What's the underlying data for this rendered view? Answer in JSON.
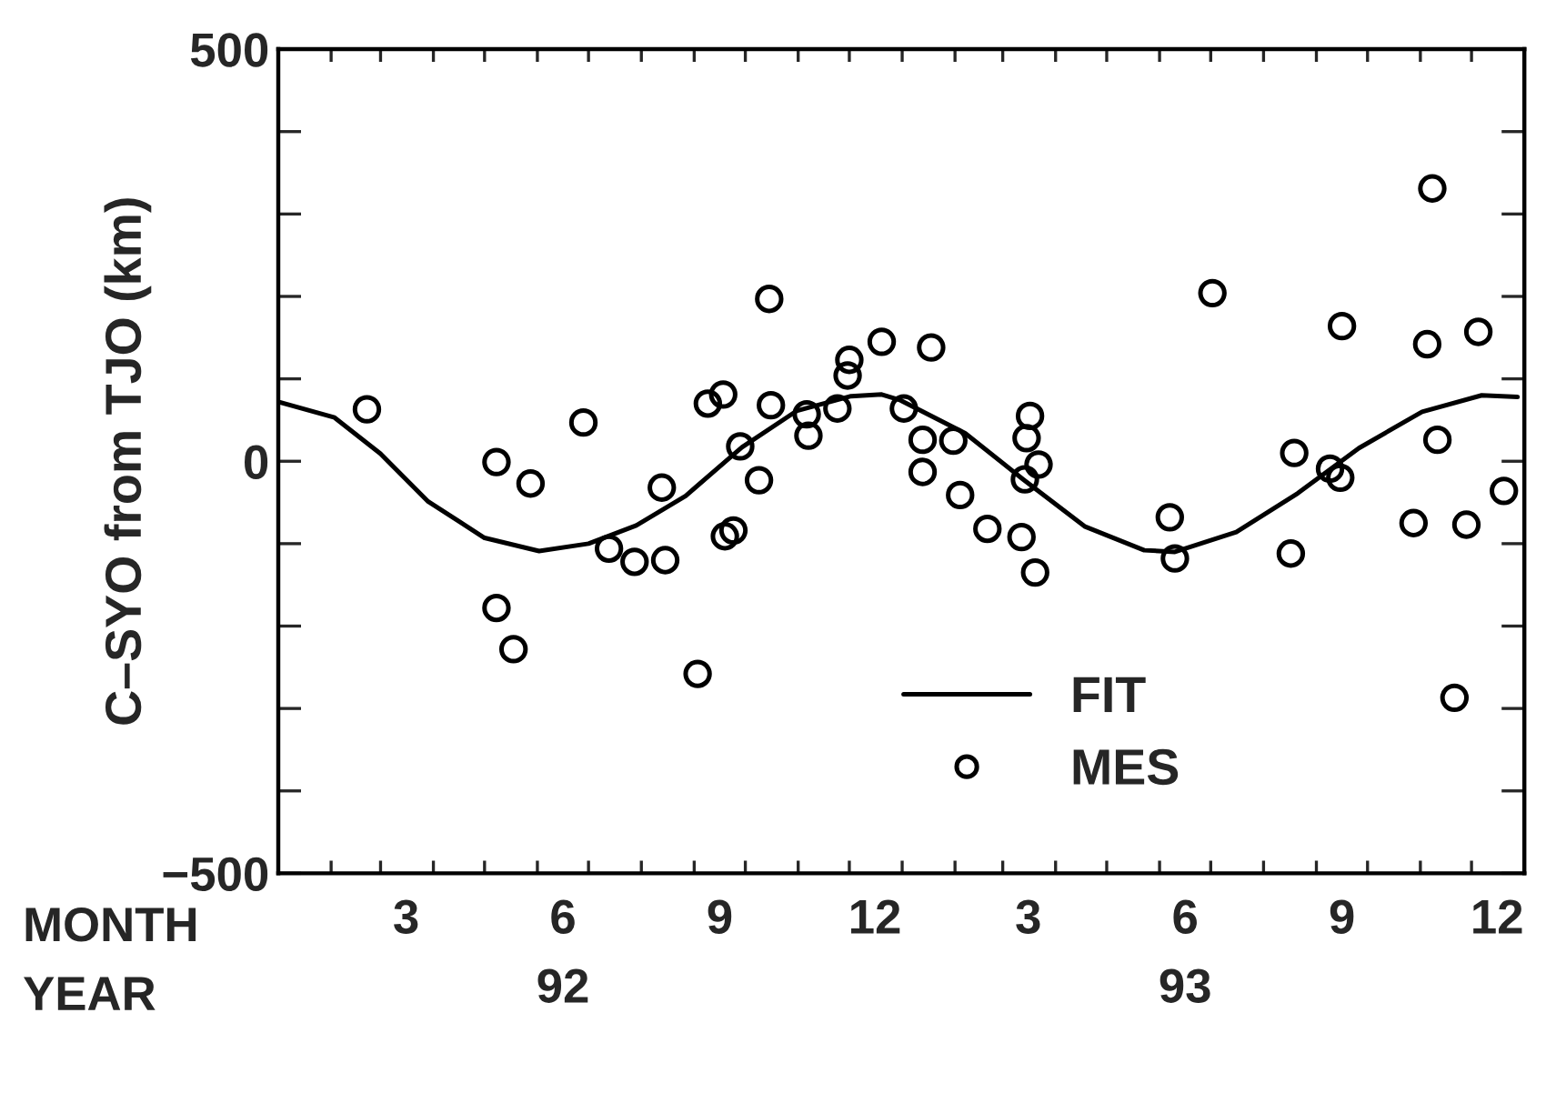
{
  "chart_data": {
    "type": "scatter",
    "ylabel": "C–SYO from TJO (km)",
    "xlabel": "MONTH\nYEAR",
    "xlim": [
      "1992-01-01",
      "1994-01-01"
    ],
    "ylim": [
      -500,
      500
    ],
    "xticks": [
      {
        "value": "1992-02-01",
        "label": null
      },
      {
        "value": "1992-03-01",
        "label": null
      },
      {
        "value": "1992-03-16",
        "label": "3"
      },
      {
        "value": "1992-04-01",
        "label": null
      },
      {
        "value": "1992-05-01",
        "label": null
      },
      {
        "value": "1992-06-01",
        "label": null
      },
      {
        "value": "1992-06-16",
        "label": "6\n92"
      },
      {
        "value": "1992-07-01",
        "label": null
      },
      {
        "value": "1992-08-01",
        "label": null
      },
      {
        "value": "1992-09-01",
        "label": null
      },
      {
        "value": "1992-09-16",
        "label": "9"
      },
      {
        "value": "1992-10-01",
        "label": null
      },
      {
        "value": "1992-11-01",
        "label": null
      },
      {
        "value": "1992-12-01",
        "label": null
      },
      {
        "value": "1992-12-16",
        "label": "12"
      },
      {
        "value": "1993-01-01",
        "label": null
      },
      {
        "value": "1993-02-01",
        "label": null
      },
      {
        "value": "1993-03-01",
        "label": null
      },
      {
        "value": "1993-03-16",
        "label": "3"
      },
      {
        "value": "1993-04-01",
        "label": null
      },
      {
        "value": "1993-05-01",
        "label": null
      },
      {
        "value": "1993-06-01",
        "label": null
      },
      {
        "value": "1993-06-16",
        "label": "6\n93"
      },
      {
        "value": "1993-07-01",
        "label": null
      },
      {
        "value": "1993-08-01",
        "label": null
      },
      {
        "value": "1993-09-01",
        "label": null
      },
      {
        "value": "1993-09-16",
        "label": "9"
      },
      {
        "value": "1993-10-01",
        "label": null
      },
      {
        "value": "1993-11-01",
        "label": null
      },
      {
        "value": "1993-12-01",
        "label": null
      },
      {
        "value": "1993-12-16",
        "label": "12"
      }
    ],
    "yticks": [
      {
        "value": -500,
        "label": "−500"
      },
      {
        "value": -400,
        "label": null
      },
      {
        "value": -300,
        "label": null
      },
      {
        "value": -200,
        "label": null
      },
      {
        "value": -100,
        "label": null
      },
      0,
      {
        "value": 100,
        "label": null
      },
      {
        "value": 200,
        "label": null
      },
      {
        "value": 300,
        "label": null
      },
      {
        "value": 400,
        "label": null
      },
      500
    ],
    "grid": false,
    "legend": "bottom right",
    "series": [
      {
        "name": "FIT",
        "type": "line",
        "color": "#000000",
        "line_style": "solid",
        "marker": "none",
        "x": [
          "1992-01-01",
          "1992-02-03",
          "1992-03-01",
          "1992-03-29",
          "1992-05-01",
          "1992-06-02",
          "1992-07-01",
          "1992-07-29",
          "1992-08-27",
          "1992-09-29",
          "1992-10-31",
          "1992-12-02",
          "1992-12-20",
          "1992-12-31",
          "1993-02-07",
          "1993-03-13",
          "1993-04-18",
          "1993-05-23",
          "1993-06-10",
          "1993-07-16",
          "1993-08-21",
          "1993-09-26",
          "1993-11-02",
          "1993-12-07",
          "1993-12-28"
        ],
        "values": [
          72,
          53,
          9,
          -49,
          -93,
          -109,
          -100,
          -78,
          -42,
          17,
          61,
          79,
          81,
          74,
          34,
          -22,
          -79,
          -108,
          -110,
          -86,
          -39,
          16,
          60,
          80,
          78
        ]
      },
      {
        "name": "MES",
        "color": "#000000",
        "marker": "circle",
        "x": [
          "1992-02-22",
          "1992-05-08",
          "1992-05-28",
          "1992-05-08",
          "1992-05-18",
          "1992-06-28",
          "1992-07-13",
          "1992-07-28",
          "1992-08-15",
          "1992-08-13",
          "1992-09-03",
          "1992-09-09",
          "1992-09-18",
          "1992-09-19",
          "1992-09-24",
          "1992-09-28",
          "1992-10-09",
          "1992-10-15",
          "1992-10-16",
          "1992-11-06",
          "1992-11-07",
          "1992-11-24",
          "1992-11-30",
          "1992-12-01",
          "1992-12-20",
          "1993-01-02",
          "1993-01-18",
          "1993-01-13",
          "1993-01-13",
          "1993-01-31",
          "1993-02-04",
          "1993-02-20",
          "1993-03-12",
          "1993-03-14",
          "1993-03-15",
          "1993-03-17",
          "1993-03-22",
          "1993-03-20",
          "1993-06-07",
          "1993-06-10",
          "1993-07-02",
          "1993-08-17",
          "1993-08-19",
          "1993-09-09",
          "1993-09-15",
          "1993-09-16",
          "1993-10-28",
          "1993-11-05",
          "1993-11-08",
          "1993-11-11",
          "1993-11-21",
          "1993-11-28",
          "1993-12-05",
          "1993-12-20"
        ],
        "values": [
          63,
          -1,
          -27,
          -178,
          -228,
          47,
          -106,
          -122,
          -120,
          -32,
          -258,
          70,
          81,
          -91,
          -84,
          18,
          -23,
          197,
          68,
          57,
          31,
          64,
          104,
          123,
          145,
          64,
          138,
          26,
          -13,
          25,
          -41,
          -82,
          -92,
          -22,
          28,
          55,
          -4,
          -135,
          -68,
          -118,
          204,
          -112,
          10,
          -9,
          -20,
          164,
          -75,
          142,
          331,
          26,
          -287,
          -77,
          157,
          -36
        ]
      }
    ]
  }
}
